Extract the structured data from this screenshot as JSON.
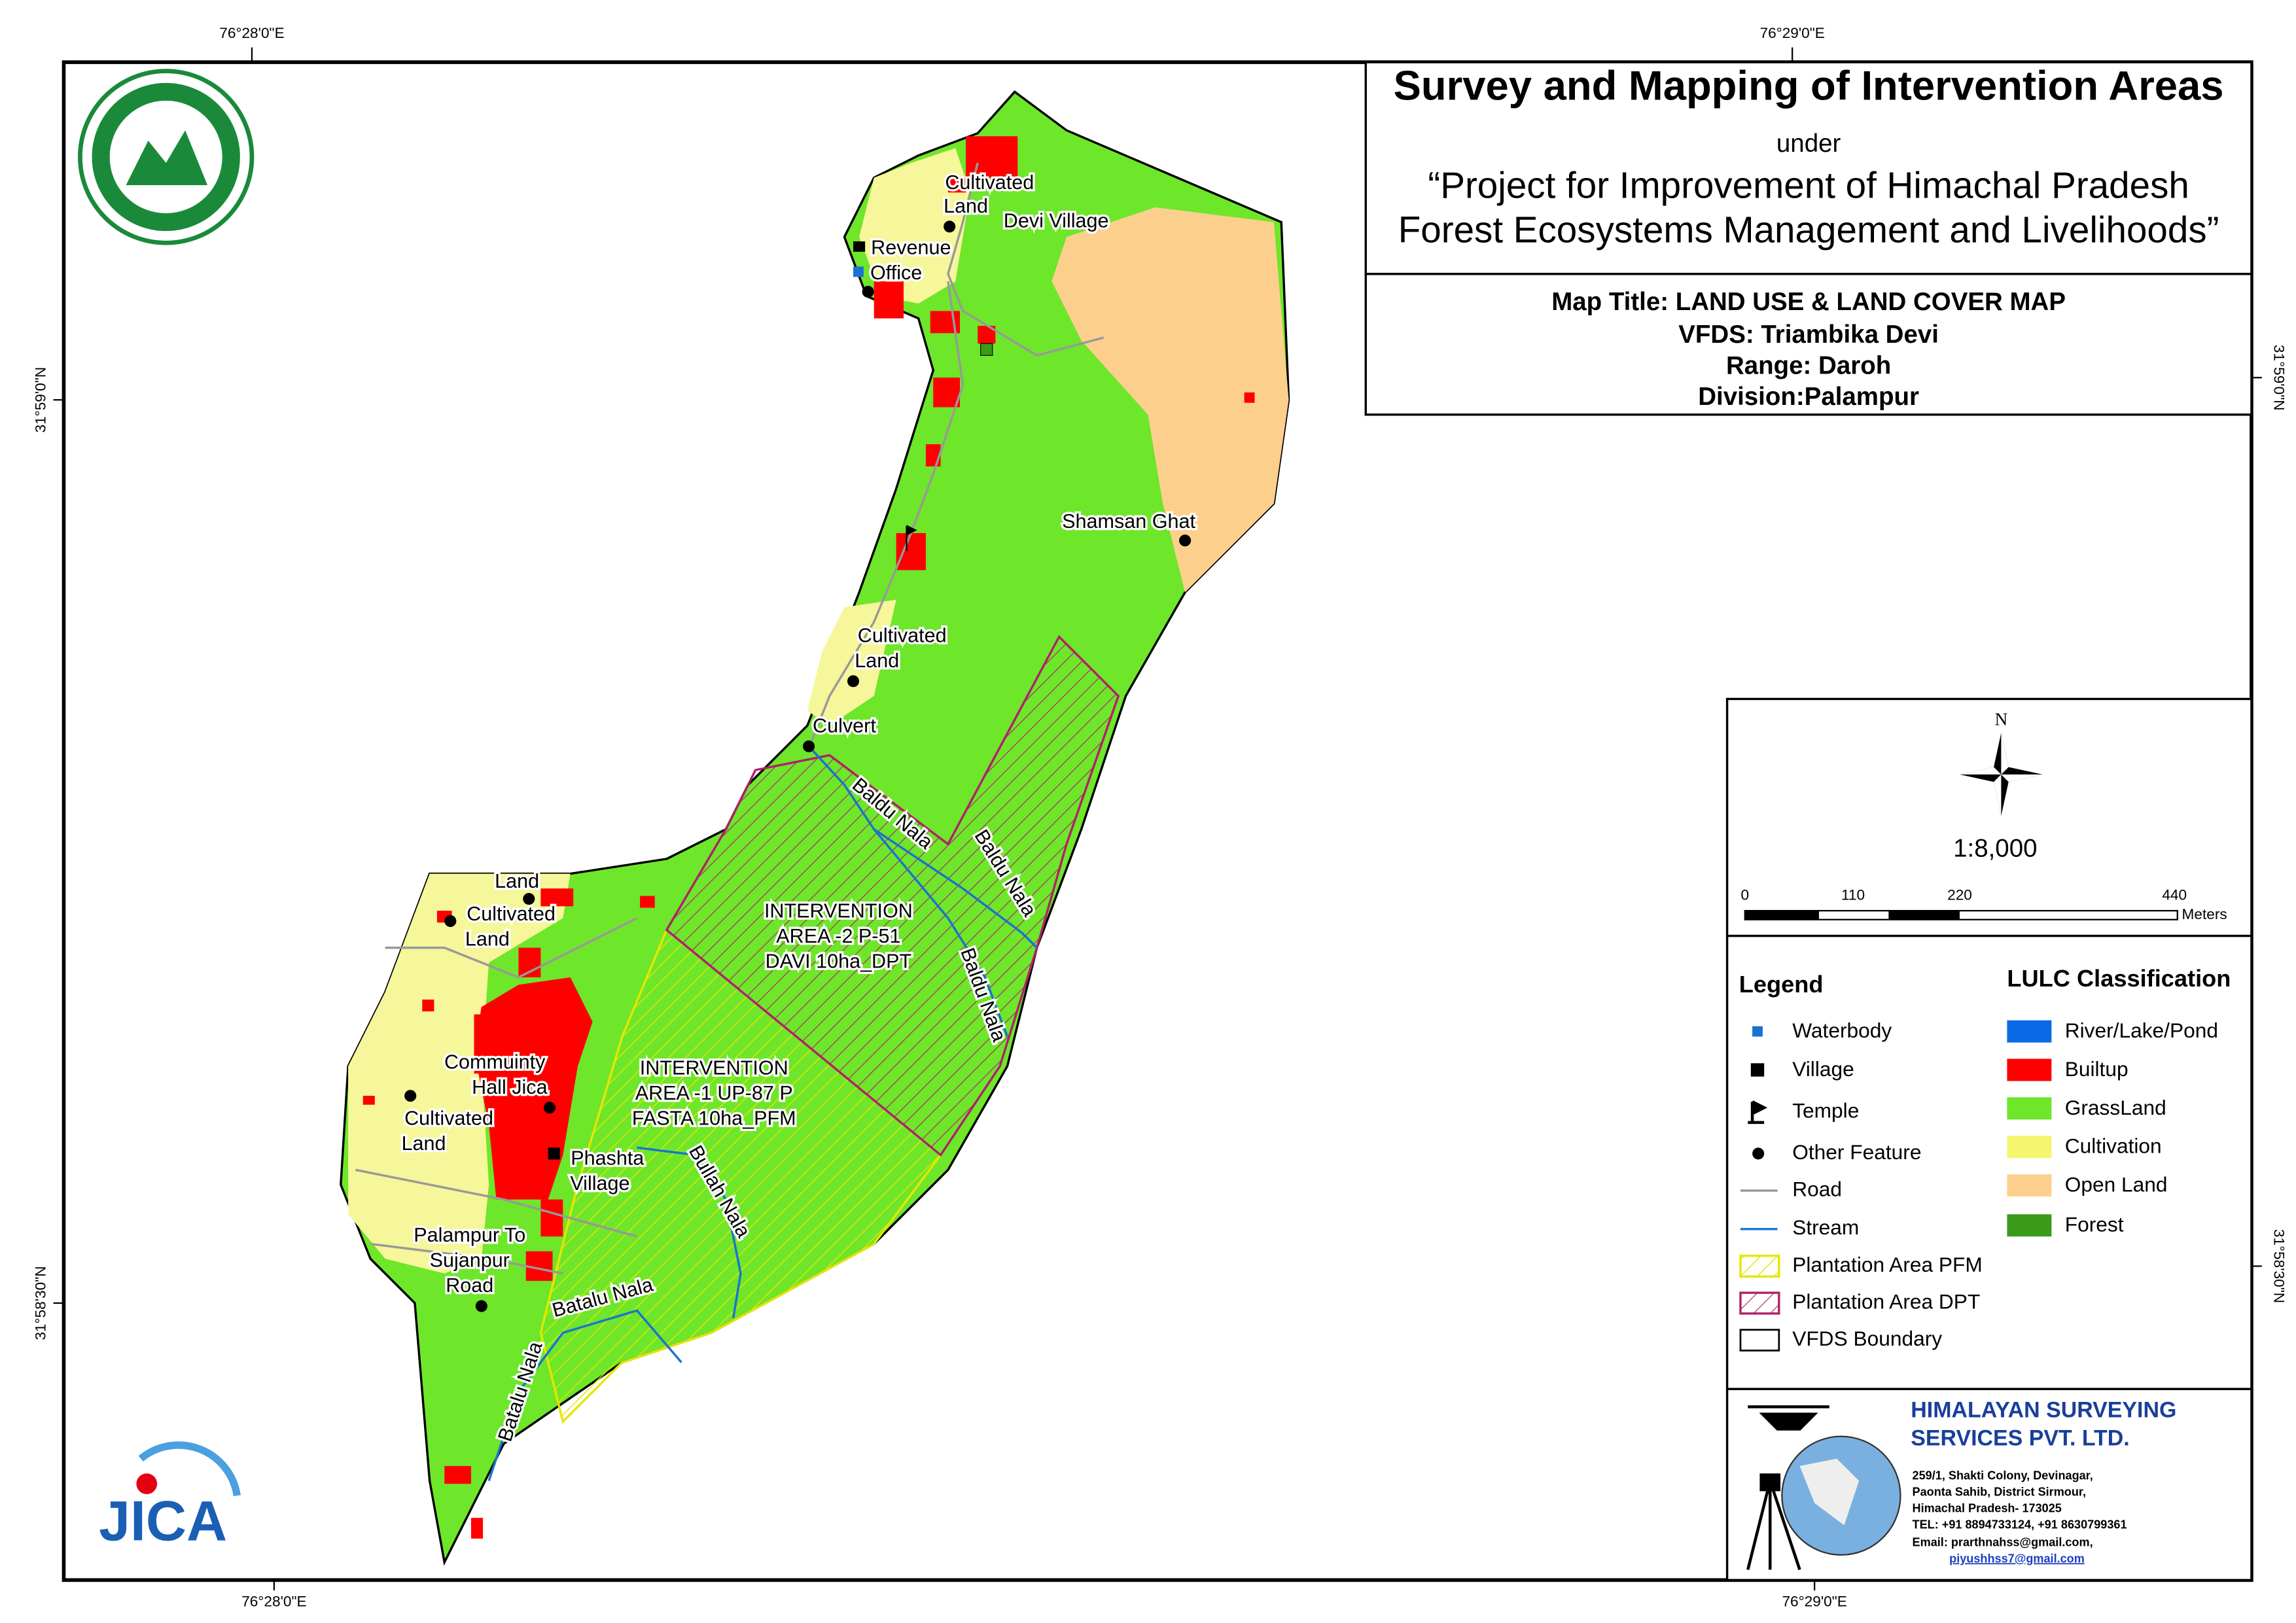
{
  "header": {
    "title": "Survey and Mapping of Intervention Areas",
    "under": "under",
    "project_lines": [
      "“Project for Improvement of Himachal Pradesh",
      "Forest Ecosystems Management and Livelihoods”"
    ]
  },
  "map_info": [
    "Map Title: LAND USE & LAND COVER MAP",
    "VFDS: Triambika Devi",
    "Range: Daroh",
    "Division:Palampur"
  ],
  "coordinates": {
    "top": [
      "76°28'0\"E",
      "76°29'0\"E"
    ],
    "bottom": [
      "76°28'0\"E",
      "76°29'0\"E"
    ],
    "left": [
      "31°59'0\"N",
      "31°58'30\"N"
    ],
    "right": [
      "31°59'0\"N",
      "31°58'30\"N"
    ]
  },
  "north": "N",
  "scale": "1:8,000",
  "scale_bar": {
    "ticks": [
      0,
      110,
      220,
      440
    ],
    "unit": "Meters"
  },
  "legend": {
    "title": "Legend",
    "items": [
      "Waterbody",
      "Village",
      "Temple",
      "Other Feature",
      "Road",
      "Stream",
      "Plantation Area PFM",
      "Plantation Area DPT",
      "VFDS Boundary"
    ]
  },
  "lulc": {
    "title": "LULC Classification",
    "items": [
      "River/Lake/Pond",
      "Builtup",
      "GrassLand",
      "Cultivation",
      "Open Land",
      "Forest"
    ]
  },
  "company": {
    "name_lines": [
      "HIMALAYAN SURVEYING",
      "SERVICES PVT. LTD."
    ],
    "address_lines": [
      "259/1, Shakti Colony, Devinagar,",
      "Paonta Sahib, District Sirmour,",
      "Himachal Pradesh- 173025",
      "TEL: +91 8894733124, +91 8630799361"
    ],
    "email_lines": [
      "Email: prarthnahss@gmail.com,",
      "piyushhss7@gmail.com"
    ]
  },
  "logos": {
    "jica": "JICA"
  },
  "map_labels": [
    "Cultivated",
    "Land",
    "Devi Village",
    "Revenue",
    "Office",
    "Shamsan Ghat",
    "Cultivated",
    "Land",
    "Culvert",
    "Baldu Nala",
    "Baldu Nala",
    "Baldu Nala",
    "INTERVENTION",
    "AREA -2 P-51",
    "DAVI 10ha_DPT",
    "Land",
    "Cultivated",
    "Land",
    "Commuinty",
    "Hall Jica",
    "INTERVENTION",
    "AREA -1 UP-87 P",
    "FASTA 10ha_PFM",
    "Cultivated",
    "Land",
    "Phashta",
    "Village",
    "Bullah Nala",
    "Palampur To",
    "Sujanpur",
    "Road",
    "Batalu Nala",
    "Batalu Nala"
  ]
}
